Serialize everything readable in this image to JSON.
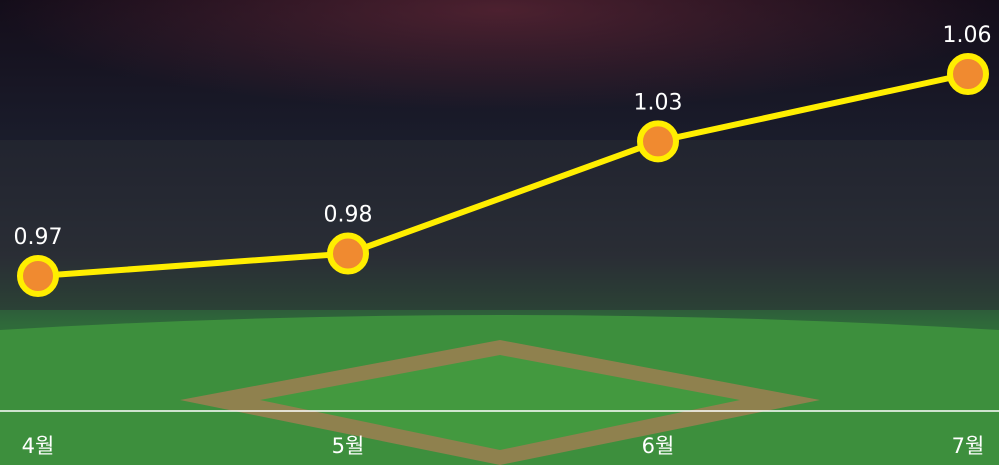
{
  "chart_data": {
    "type": "line",
    "categories": [
      "4월",
      "5월",
      "6월",
      "7월"
    ],
    "values": [
      0.97,
      0.98,
      1.03,
      1.06
    ],
    "line_color": "#ffee00",
    "marker_color": "#f08a30"
  }
}
